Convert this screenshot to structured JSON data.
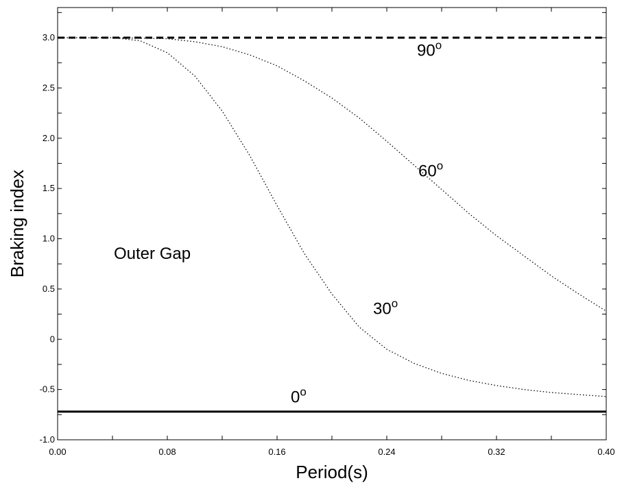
{
  "chart_data": {
    "type": "line",
    "xlabel": "Period(s)",
    "ylabel": "Braking index",
    "xlim": [
      0.0,
      0.4
    ],
    "ylim": [
      -1.0,
      3.3
    ],
    "x_ticks": [
      "0.00",
      "0.08",
      "0.16",
      "0.24",
      "0.32",
      "0.40"
    ],
    "y_ticks": [
      "-1.0",
      "-0.5",
      "0",
      "0.5",
      "1.0",
      "1.5",
      "2.0",
      "2.5",
      "3.0"
    ],
    "grid": false,
    "inner_label": "Outer Gap",
    "series": [
      {
        "name": "0o",
        "style": "solid",
        "x": [
          0.0,
          0.4
        ],
        "y": [
          -0.72,
          -0.72
        ]
      },
      {
        "name": "30o",
        "style": "dotted",
        "x": [
          0.0,
          0.04,
          0.06,
          0.08,
          0.1,
          0.12,
          0.14,
          0.16,
          0.18,
          0.2,
          0.22,
          0.24,
          0.26,
          0.28,
          0.3,
          0.32,
          0.34,
          0.36,
          0.38,
          0.4
        ],
        "y": [
          3.0,
          3.0,
          2.97,
          2.85,
          2.62,
          2.27,
          1.83,
          1.33,
          0.85,
          0.45,
          0.12,
          -0.1,
          -0.24,
          -0.34,
          -0.41,
          -0.46,
          -0.5,
          -0.53,
          -0.55,
          -0.57
        ]
      },
      {
        "name": "60o",
        "style": "dotted",
        "x": [
          0.0,
          0.04,
          0.08,
          0.1,
          0.12,
          0.14,
          0.16,
          0.18,
          0.2,
          0.22,
          0.24,
          0.26,
          0.28,
          0.3,
          0.32,
          0.34,
          0.36,
          0.38,
          0.4
        ],
        "y": [
          3.0,
          3.0,
          2.99,
          2.96,
          2.91,
          2.83,
          2.72,
          2.57,
          2.4,
          2.2,
          1.97,
          1.73,
          1.49,
          1.25,
          1.03,
          0.83,
          0.63,
          0.45,
          0.28
        ]
      },
      {
        "name": "90o",
        "style": "dashed",
        "x": [
          0.0,
          0.4
        ],
        "y": [
          3.0,
          3.0
        ]
      }
    ],
    "annotations": [
      {
        "text": "0",
        "sup": "o",
        "x": 0.17,
        "y": -0.63
      },
      {
        "text": "30",
        "sup": "o",
        "x": 0.23,
        "y": 0.25
      },
      {
        "text": "60",
        "sup": "o",
        "x": 0.263,
        "y": 1.62
      },
      {
        "text": "90",
        "sup": "o",
        "x": 0.262,
        "y": 2.82
      }
    ]
  }
}
